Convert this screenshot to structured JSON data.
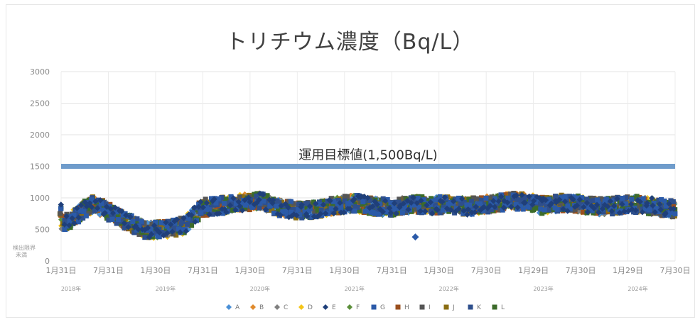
{
  "chart_data": {
    "type": "scatter",
    "title": "トリチウム濃度（Bq/L）",
    "ylim": [
      0,
      3000
    ],
    "yticks": [
      "3000",
      "2500",
      "2000",
      "1500",
      "1000",
      "500",
      "0"
    ],
    "y_extra_label": [
      "検出限界",
      "未満"
    ],
    "xticks": [
      "1月31日",
      "7月31日",
      "1月30日",
      "7月31日",
      "1月30日",
      "7月31日",
      "1月30日",
      "7月31日",
      "1月30日",
      "7月30日",
      "1月29日",
      "7月30日",
      "1月29日",
      "7月30日"
    ],
    "year_labels": [
      "2018年",
      "2019年",
      "2020年",
      "2021年",
      "2022年",
      "2023年",
      "2024年"
    ],
    "target_line": {
      "value": 1500,
      "label": "運用目標値(1,500Bq/L)",
      "color": "#6f9ccb"
    },
    "series": [
      {
        "name": "A",
        "color": "#4a8fd6",
        "marker": "diamond"
      },
      {
        "name": "B",
        "color": "#e08a2c",
        "marker": "diamond"
      },
      {
        "name": "C",
        "color": "#7f7f7f",
        "marker": "diamond"
      },
      {
        "name": "D",
        "color": "#f5c518",
        "marker": "diamond"
      },
      {
        "name": "E",
        "color": "#1f3f7a",
        "marker": "diamond"
      },
      {
        "name": "F",
        "color": "#5b8f3a",
        "marker": "diamond"
      },
      {
        "name": "G",
        "color": "#2b5aa8",
        "marker": "square"
      },
      {
        "name": "H",
        "color": "#9a4f1e",
        "marker": "square"
      },
      {
        "name": "I",
        "color": "#555555",
        "marker": "square"
      },
      {
        "name": "J",
        "color": "#8a6d12",
        "marker": "square"
      },
      {
        "name": "K",
        "color": "#2e4f8c",
        "marker": "square"
      },
      {
        "name": "L",
        "color": "#3c6b2a",
        "marker": "square"
      }
    ],
    "trend": [
      [
        0,
        550
      ],
      [
        0.3,
        700
      ],
      [
        0.5,
        820
      ],
      [
        0.7,
        900
      ],
      [
        1.0,
        780
      ],
      [
        1.4,
        620
      ],
      [
        1.8,
        480
      ],
      [
        2.2,
        500
      ],
      [
        2.6,
        560
      ],
      [
        3.0,
        850
      ],
      [
        3.4,
        880
      ],
      [
        3.8,
        920
      ],
      [
        4.2,
        960
      ],
      [
        4.6,
        850
      ],
      [
        5.0,
        800
      ],
      [
        5.4,
        820
      ],
      [
        5.8,
        880
      ],
      [
        6.2,
        920
      ],
      [
        6.6,
        870
      ],
      [
        7.0,
        850
      ],
      [
        7.4,
        900
      ],
      [
        7.8,
        880
      ],
      [
        8.2,
        900
      ],
      [
        8.6,
        860
      ],
      [
        9.0,
        900
      ],
      [
        9.4,
        940
      ],
      [
        9.8,
        950
      ],
      [
        10.2,
        880
      ],
      [
        10.6,
        920
      ],
      [
        11.0,
        900
      ],
      [
        11.4,
        860
      ],
      [
        11.8,
        880
      ],
      [
        12.2,
        900
      ],
      [
        12.6,
        860
      ],
      [
        13.0,
        820
      ]
    ],
    "outlier": [
      7.5,
      380
    ]
  }
}
